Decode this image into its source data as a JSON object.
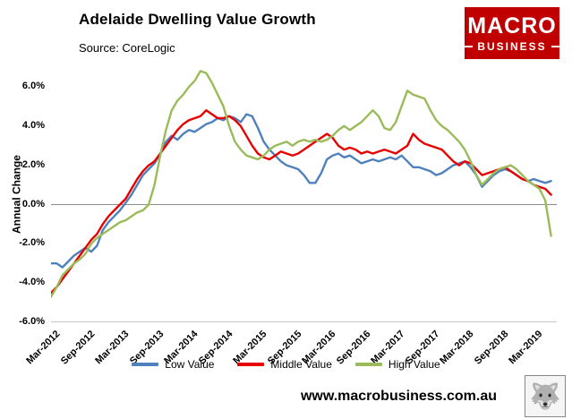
{
  "header": {
    "title": "Adelaide Dwelling Value Growth",
    "source": "Source: CoreLogic"
  },
  "logo": {
    "line1": "MACRO",
    "line2": "BUSINESS",
    "bg_color": "#C00000"
  },
  "footer": {
    "url": "www.macrobusiness.com.au",
    "wolf_icon": "wolf-logo"
  },
  "chart_data": {
    "type": "line",
    "title": "Adelaide Dwelling Value Growth",
    "xlabel": "",
    "ylabel": "Annual Change",
    "ylim": [
      -6,
      7
    ],
    "grid": false,
    "zero_line": true,
    "legend_position": "bottom",
    "x_start": "Mar-2012",
    "x_interval": "monthly",
    "n_points": 88,
    "y_ticks": [
      {
        "value": 6,
        "label": "6.0%"
      },
      {
        "value": 4,
        "label": "4.0%"
      },
      {
        "value": 2,
        "label": "2.0%"
      },
      {
        "value": 0,
        "label": "0.0%"
      },
      {
        "value": -2,
        "label": "-2.0%"
      },
      {
        "value": -4,
        "label": "-4.0%"
      },
      {
        "value": -6,
        "label": "-6.0%"
      }
    ],
    "x_ticks": [
      {
        "index": 0,
        "label": "Mar-2012"
      },
      {
        "index": 6,
        "label": "Sep-2012"
      },
      {
        "index": 12,
        "label": "Mar-2013"
      },
      {
        "index": 18,
        "label": "Sep-2013"
      },
      {
        "index": 24,
        "label": "Mar-2014"
      },
      {
        "index": 30,
        "label": "Sep-2014"
      },
      {
        "index": 36,
        "label": "Mar-2015"
      },
      {
        "index": 42,
        "label": "Sep-2015"
      },
      {
        "index": 48,
        "label": "Mar-2016"
      },
      {
        "index": 54,
        "label": "Sep-2016"
      },
      {
        "index": 60,
        "label": "Mar-2017"
      },
      {
        "index": 66,
        "label": "Sep-2017"
      },
      {
        "index": 72,
        "label": "Mar-2018"
      },
      {
        "index": 78,
        "label": "Sep-2018"
      },
      {
        "index": 84,
        "label": "Mar-2019"
      }
    ],
    "series": [
      {
        "name": "Low Value",
        "color": "#4F81BD",
        "values": [
          -3.0,
          -3.0,
          -3.2,
          -2.9,
          -2.6,
          -2.4,
          -2.2,
          -2.4,
          -2.1,
          -1.3,
          -0.9,
          -0.6,
          -0.3,
          0.1,
          0.5,
          1.0,
          1.5,
          1.8,
          2.1,
          2.6,
          3.2,
          3.5,
          3.3,
          3.6,
          3.8,
          3.7,
          3.9,
          4.1,
          4.2,
          4.4,
          4.3,
          4.5,
          4.4,
          4.2,
          4.6,
          4.5,
          3.9,
          3.2,
          2.8,
          2.5,
          2.2,
          2.0,
          1.9,
          1.8,
          1.5,
          1.1,
          1.1,
          1.6,
          2.3,
          2.5,
          2.6,
          2.4,
          2.5,
          2.3,
          2.1,
          2.2,
          2.3,
          2.2,
          2.3,
          2.4,
          2.3,
          2.5,
          2.2,
          1.9,
          1.9,
          1.8,
          1.7,
          1.5,
          1.6,
          1.8,
          2.0,
          2.1,
          2.2,
          1.9,
          1.5,
          0.9,
          1.2,
          1.5,
          1.7,
          1.8,
          1.7,
          1.5,
          1.3,
          1.2,
          1.3,
          1.2,
          1.1,
          1.2
        ]
      },
      {
        "name": "Middle Value",
        "color": "#E80000",
        "values": [
          -4.5,
          -4.2,
          -3.8,
          -3.4,
          -3.0,
          -2.6,
          -2.2,
          -1.8,
          -1.5,
          -1.0,
          -0.6,
          -0.3,
          0.0,
          0.3,
          0.8,
          1.3,
          1.7,
          2.0,
          2.2,
          2.6,
          3.0,
          3.4,
          3.8,
          4.1,
          4.3,
          4.4,
          4.5,
          4.8,
          4.6,
          4.4,
          4.4,
          4.5,
          4.3,
          4.0,
          3.5,
          3.0,
          2.6,
          2.4,
          2.3,
          2.5,
          2.7,
          2.6,
          2.5,
          2.6,
          2.8,
          3.0,
          3.2,
          3.4,
          3.6,
          3.4,
          3.0,
          2.8,
          2.9,
          2.8,
          2.6,
          2.7,
          2.6,
          2.7,
          2.8,
          2.7,
          2.6,
          2.8,
          3.0,
          3.6,
          3.3,
          3.1,
          3.0,
          2.9,
          2.8,
          2.5,
          2.2,
          2.0,
          2.2,
          2.1,
          1.8,
          1.5,
          1.6,
          1.7,
          1.8,
          1.9,
          1.7,
          1.5,
          1.3,
          1.2,
          1.0,
          0.9,
          0.8,
          0.5
        ]
      },
      {
        "name": "High Value",
        "color": "#9BBB59",
        "values": [
          -4.7,
          -4.2,
          -3.6,
          -3.3,
          -3.0,
          -2.8,
          -2.5,
          -2.0,
          -1.7,
          -1.5,
          -1.3,
          -1.1,
          -0.9,
          -0.8,
          -0.6,
          -0.4,
          -0.3,
          0.0,
          1.0,
          2.5,
          3.8,
          4.8,
          5.3,
          5.6,
          6.0,
          6.3,
          6.8,
          6.7,
          6.2,
          5.6,
          5.0,
          4.0,
          3.2,
          2.8,
          2.5,
          2.4,
          2.3,
          2.5,
          2.8,
          3.0,
          3.1,
          3.2,
          3.0,
          3.2,
          3.3,
          3.2,
          3.3,
          3.2,
          3.3,
          3.5,
          3.8,
          4.0,
          3.8,
          4.0,
          4.2,
          4.5,
          4.8,
          4.5,
          3.9,
          3.8,
          4.2,
          5.0,
          5.8,
          5.6,
          5.5,
          5.4,
          4.8,
          4.3,
          4.0,
          3.8,
          3.5,
          3.2,
          2.8,
          2.2,
          1.5,
          1.0,
          1.3,
          1.6,
          1.8,
          1.9,
          2.0,
          1.8,
          1.5,
          1.2,
          1.0,
          0.8,
          0.2,
          -1.6
        ]
      }
    ]
  }
}
